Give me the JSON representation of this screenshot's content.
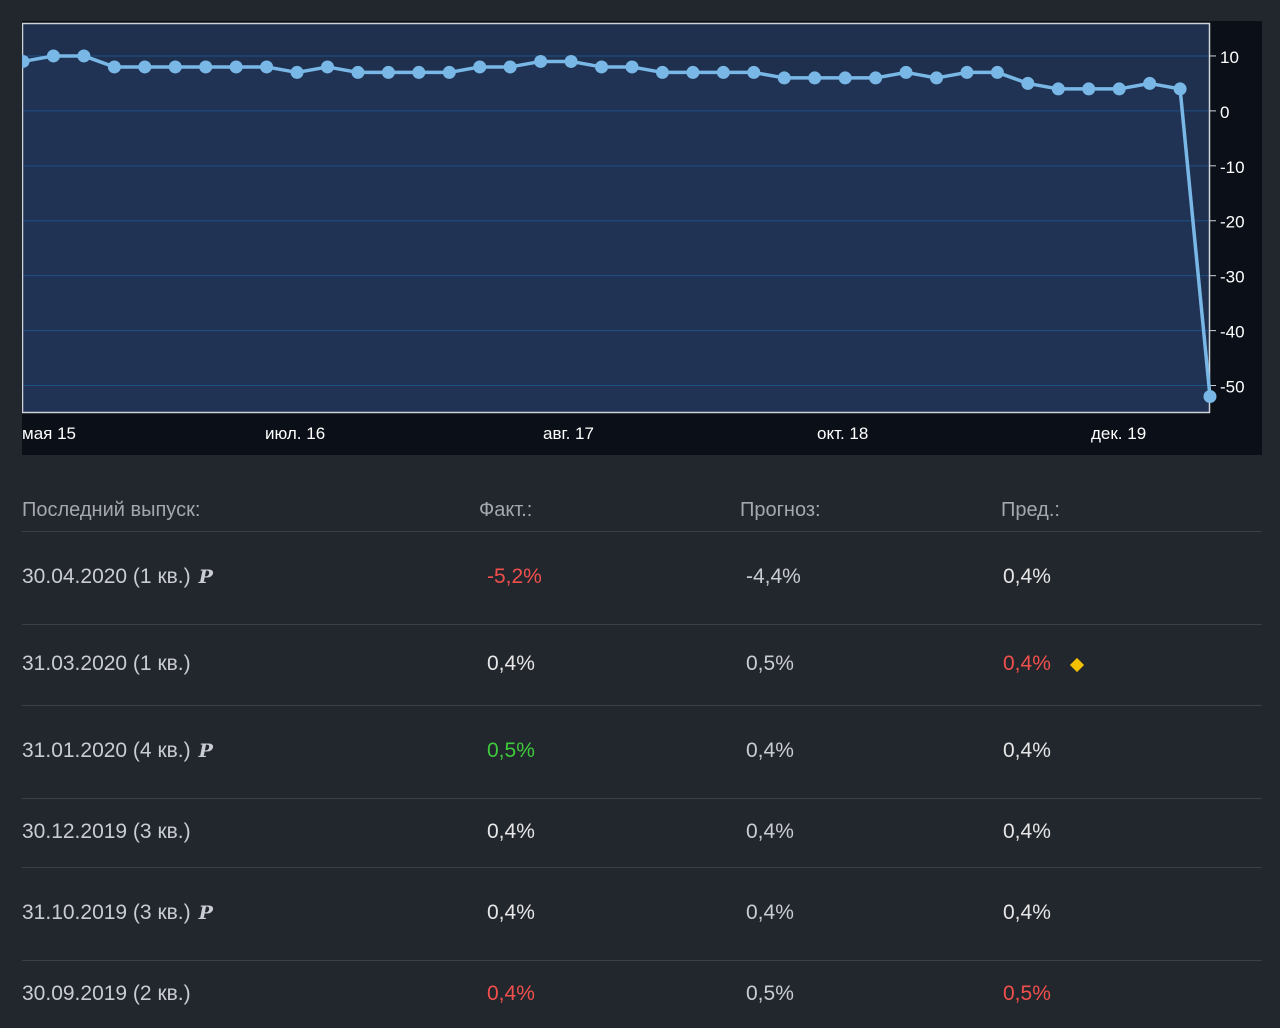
{
  "chart_data": {
    "type": "area",
    "x_tick_labels": [
      "мая 15",
      "июл. 16",
      "авг. 17",
      "окт. 18",
      "дек. 19"
    ],
    "y_ticks": [
      10,
      0,
      -10,
      -20,
      -30,
      -40,
      -50
    ],
    "ylim": [
      -55,
      16
    ],
    "grid": true,
    "series": [
      {
        "values": [
          9,
          10,
          10,
          8,
          8,
          8,
          8,
          8,
          8,
          7,
          8,
          7,
          7,
          7,
          7,
          8,
          8,
          9,
          9,
          8,
          8,
          7,
          7,
          7,
          7,
          6,
          6,
          6,
          6,
          7,
          6,
          7,
          7,
          5,
          4,
          4,
          4,
          5,
          4,
          -52
        ]
      }
    ],
    "colors": {
      "line": "#79b8e6",
      "fill": "#1f304e",
      "grid": "#1c4f86",
      "axis": "#cfd3d8"
    }
  },
  "table": {
    "headers": {
      "date": "Последний выпуск:",
      "fact": "Факт.:",
      "forecast": "Прогноз:",
      "prev": "Пред.:"
    },
    "rows": [
      {
        "date": "30.04.2020 (1 кв.)",
        "prelim": "P",
        "fact": "-5,2%",
        "fact_status": "neg",
        "forecast": "-4,4%",
        "prev": "0,4%",
        "prev_status": "neu",
        "revised": false
      },
      {
        "date": "31.03.2020 (1 кв.)",
        "prelim": "",
        "fact": "0,4%",
        "fact_status": "neu",
        "forecast": "0,5%",
        "prev": "0,4%",
        "prev_status": "neg",
        "revised": true
      },
      {
        "date": "31.01.2020 (4 кв.)",
        "prelim": "P",
        "fact": "0,5%",
        "fact_status": "pos",
        "forecast": "0,4%",
        "prev": "0,4%",
        "prev_status": "neu",
        "revised": false
      },
      {
        "date": "30.12.2019 (3 кв.)",
        "prelim": "",
        "fact": "0,4%",
        "fact_status": "neu",
        "forecast": "0,4%",
        "prev": "0,4%",
        "prev_status": "neu",
        "revised": false
      },
      {
        "date": "31.10.2019 (3 кв.)",
        "prelim": "P",
        "fact": "0,4%",
        "fact_status": "neu",
        "forecast": "0,4%",
        "prev": "0,4%",
        "prev_status": "neu",
        "revised": false
      },
      {
        "date": "30.09.2019 (2 кв.)",
        "prelim": "",
        "fact": "0,4%",
        "fact_status": "neg",
        "forecast": "0,5%",
        "prev": "0,5%",
        "prev_status": "neg",
        "revised": false
      }
    ]
  }
}
